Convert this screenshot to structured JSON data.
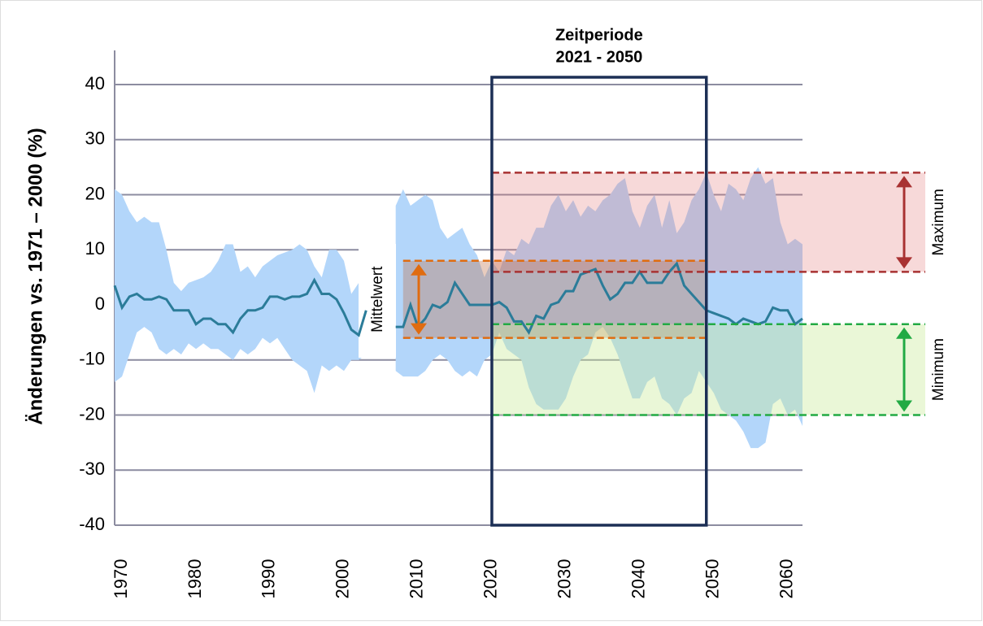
{
  "chart_data": {
    "type": "line_band",
    "y_label": "Änderungen vs. 1971 – 2000 (%)",
    "xlim": [
      1970,
      2063
    ],
    "ylim": [
      -40,
      40
    ],
    "xticks": [
      1970,
      1980,
      1990,
      2000,
      2010,
      2020,
      2030,
      2040,
      2050,
      2060
    ],
    "yticks": [
      -40,
      -30,
      -20,
      -10,
      0,
      10,
      20,
      30,
      40
    ],
    "grid": true,
    "x": [
      1970,
      1971,
      1972,
      1973,
      1974,
      1975,
      1976,
      1977,
      1978,
      1979,
      1980,
      1981,
      1982,
      1983,
      1984,
      1985,
      1986,
      1987,
      1988,
      1989,
      1990,
      1991,
      1992,
      1993,
      1994,
      1995,
      1996,
      1997,
      1998,
      1999,
      2000,
      2001,
      2002,
      2003,
      2004,
      2005,
      2006,
      2007,
      2008,
      2009,
      2010,
      2011,
      2012,
      2013,
      2014,
      2015,
      2016,
      2017,
      2018,
      2019,
      2020,
      2021,
      2022,
      2023,
      2024,
      2025,
      2026,
      2027,
      2028,
      2029,
      2030,
      2031,
      2032,
      2033,
      2034,
      2035,
      2036,
      2037,
      2038,
      2039,
      2040,
      2041,
      2042,
      2043,
      2044,
      2045,
      2046,
      2047,
      2048,
      2049,
      2050,
      2051,
      2052,
      2053,
      2054,
      2055,
      2056,
      2057,
      2058,
      2059,
      2060,
      2061,
      2062,
      2063
    ],
    "values": [
      3.5,
      -0.5,
      1.5,
      2,
      1,
      1,
      1.5,
      1,
      -1,
      -1,
      -1,
      -3.5,
      -2.5,
      -2.5,
      -3.5,
      -3.5,
      -5,
      -2.5,
      -1,
      -1,
      -0.5,
      1.5,
      1.5,
      1,
      1.5,
      1.5,
      2,
      4.5,
      2,
      2,
      1,
      -1.5,
      -4.5,
      -5.5,
      -1,
      null,
      null,
      null,
      -4,
      -4,
      0,
      -4,
      -2.5,
      0,
      -0.5,
      0.5,
      4,
      2,
      0,
      0,
      0,
      0,
      0.5,
      -0.5,
      -3,
      -3,
      -5,
      -2,
      -2.5,
      0,
      0.5,
      2.5,
      2.5,
      5.5,
      6,
      6.5,
      3.5,
      1,
      2,
      4,
      4,
      6,
      4,
      4,
      4,
      6,
      7.5,
      3.5,
      2,
      0.5,
      -1,
      -1.5,
      -2,
      -2.5,
      -3.5,
      -2.5,
      -3,
      -3.5,
      -3,
      -0.5,
      -1,
      -1,
      -3.5,
      -2.5
    ],
    "color": "#2b7c99",
    "band": {
      "color": "#b3d6fa",
      "upper": [
        21,
        20,
        17,
        15,
        16,
        15,
        15,
        10,
        4,
        2.5,
        4,
        4.5,
        5,
        6,
        8,
        11,
        11,
        6,
        7,
        5,
        7,
        8,
        9,
        9.5,
        10,
        11,
        10,
        7,
        5,
        10,
        10,
        8,
        2,
        4,
        8,
        null,
        null,
        null,
        18,
        21,
        18,
        19,
        20,
        19,
        14,
        12,
        13,
        14,
        11,
        9,
        5,
        8,
        6,
        10,
        9,
        12,
        11,
        14,
        14,
        18,
        20,
        17,
        19,
        16,
        18,
        17,
        19,
        20,
        22,
        23,
        17,
        14,
        18,
        20,
        14,
        19,
        13,
        15,
        19,
        21,
        24,
        20,
        17,
        22,
        21,
        19,
        23,
        25,
        22,
        23,
        15,
        11,
        12,
        11
      ],
      "lower": [
        -14,
        -13,
        -9,
        -5,
        -4,
        -5,
        -8,
        -9,
        -8,
        -9,
        -7,
        -8,
        -7,
        -8,
        -8,
        -9,
        -10,
        -8,
        -9,
        -8,
        -6,
        -7,
        -6,
        -8,
        -10,
        -11,
        -12,
        -16,
        -11,
        -12,
        -11,
        -12,
        -10,
        -10,
        -9,
        null,
        null,
        null,
        -12,
        -13,
        -13,
        -13,
        -12,
        -10,
        -9,
        -10,
        -12,
        -13,
        -12,
        -13,
        -10,
        -9,
        -5,
        -8,
        -9,
        -10,
        -15,
        -18,
        -19,
        -19,
        -19,
        -17,
        -13,
        -10,
        -9,
        -5,
        -4,
        -6,
        -9,
        -13,
        -17,
        -17,
        -14,
        -13,
        -17,
        -18,
        -20,
        -17,
        -16,
        -12,
        -14,
        -16,
        -19,
        -20,
        -21,
        -23,
        -26,
        -26,
        -25,
        -18,
        -17,
        -20,
        -19,
        -22
      ]
    },
    "period": {
      "label": [
        "Zeitperiode",
        "2021 - 2050"
      ],
      "start": 2021,
      "end": 2050,
      "color": "#1c2f55"
    },
    "ranges": [
      {
        "name": "Maximum",
        "low": 6,
        "high": 24,
        "from": 2021,
        "color": "#a83232",
        "fill": "rgba(225,120,120,0.28)"
      },
      {
        "name": "Mittelwert",
        "low": -6,
        "high": 8,
        "from": 2009,
        "to": 2050,
        "color": "#e06c10",
        "fill": "rgba(190,110,70,0.35)"
      },
      {
        "name": "Minimum",
        "low": -20,
        "high": -3.5,
        "from": 2021,
        "color": "#22aa44",
        "fill": "rgba(200,235,150,0.38)"
      }
    ]
  }
}
